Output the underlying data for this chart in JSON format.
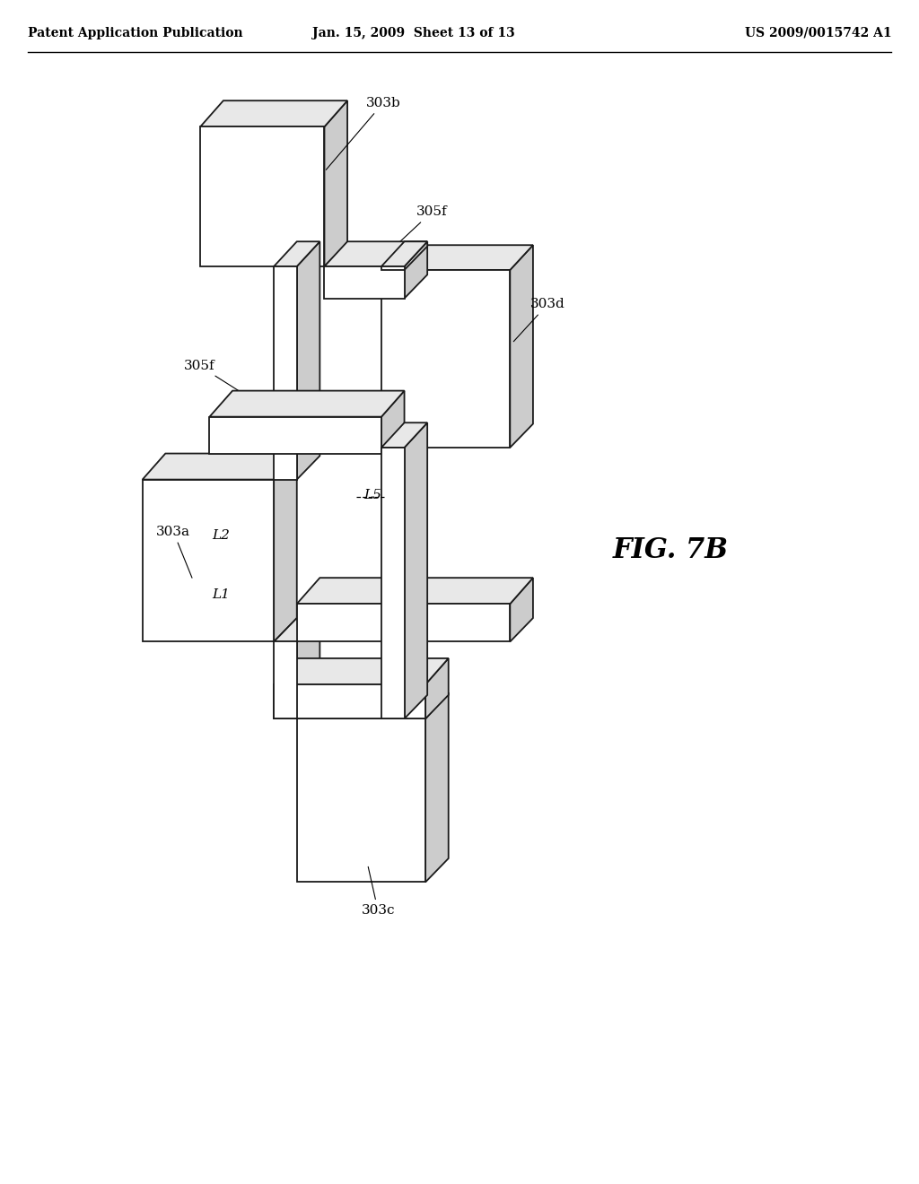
{
  "header_left": "Patent Application Publication",
  "header_mid": "Jan. 15, 2009  Sheet 13 of 13",
  "header_right": "US 2009/0015742 A1",
  "fig_label": "FIG. 7B",
  "background_color": "#ffffff",
  "line_color": "#1a1a1a",
  "fill_color": "#ffffff",
  "light_gray": "#e8e8e8",
  "med_gray": "#cccccc",
  "header_fs": 10,
  "label_fs": 11,
  "fig_label_fs": 22,
  "lw_main": 1.3
}
